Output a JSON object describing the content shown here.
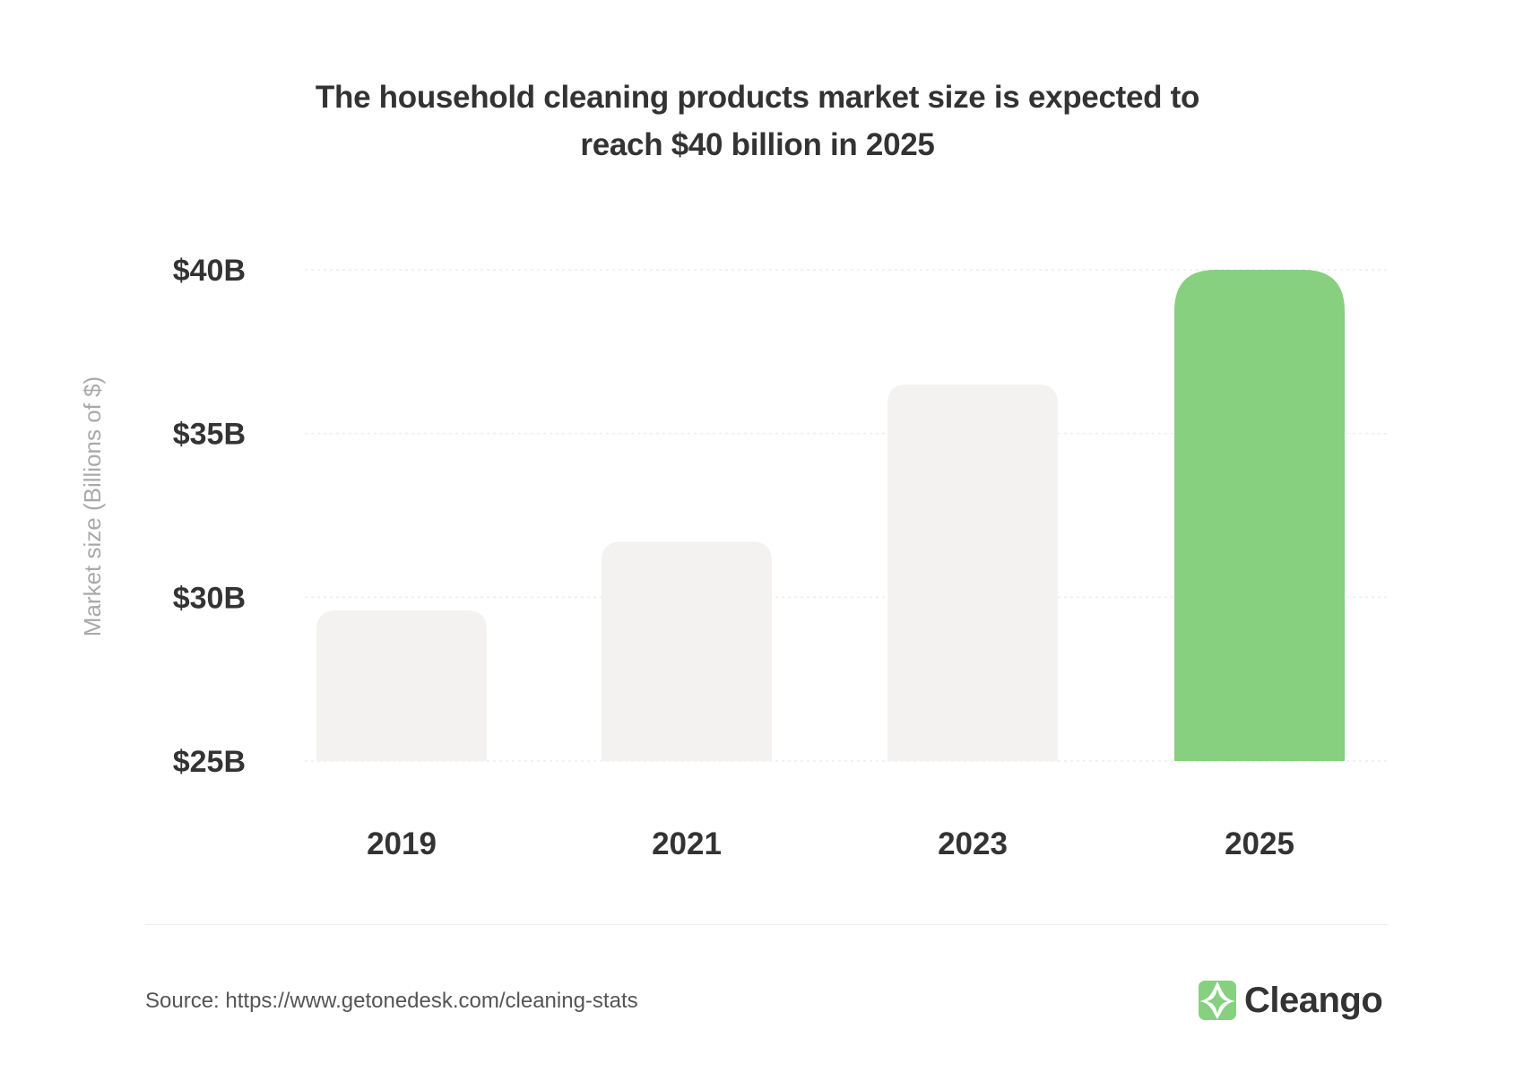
{
  "chart_data": {
    "type": "bar",
    "title_lines": [
      "The household cleaning products market size is expected to",
      "reach $40 billion in 2025"
    ],
    "xlabel": "",
    "ylabel": "Market size (Billions of $)",
    "categories": [
      "2019",
      "2021",
      "2023",
      "2025"
    ],
    "values": [
      29.6,
      31.7,
      36.5,
      40.0
    ],
    "ylim": [
      25,
      40
    ],
    "yticks": [
      25,
      30,
      35,
      40
    ],
    "ytick_labels": [
      "$25B",
      "$30B",
      "$35B",
      "$40B"
    ],
    "grid": "horizontal dotted",
    "colors": {
      "default_bar": "#f3f2f0",
      "highlight_bar": "#86d07f",
      "highlight_category": "2025"
    }
  },
  "footer": {
    "source": "Source: https://www.getonedesk.com/cleaning-stats",
    "brand": "Cleango",
    "brand_icon": "leaf-icon",
    "brand_color": "#86d07f"
  }
}
